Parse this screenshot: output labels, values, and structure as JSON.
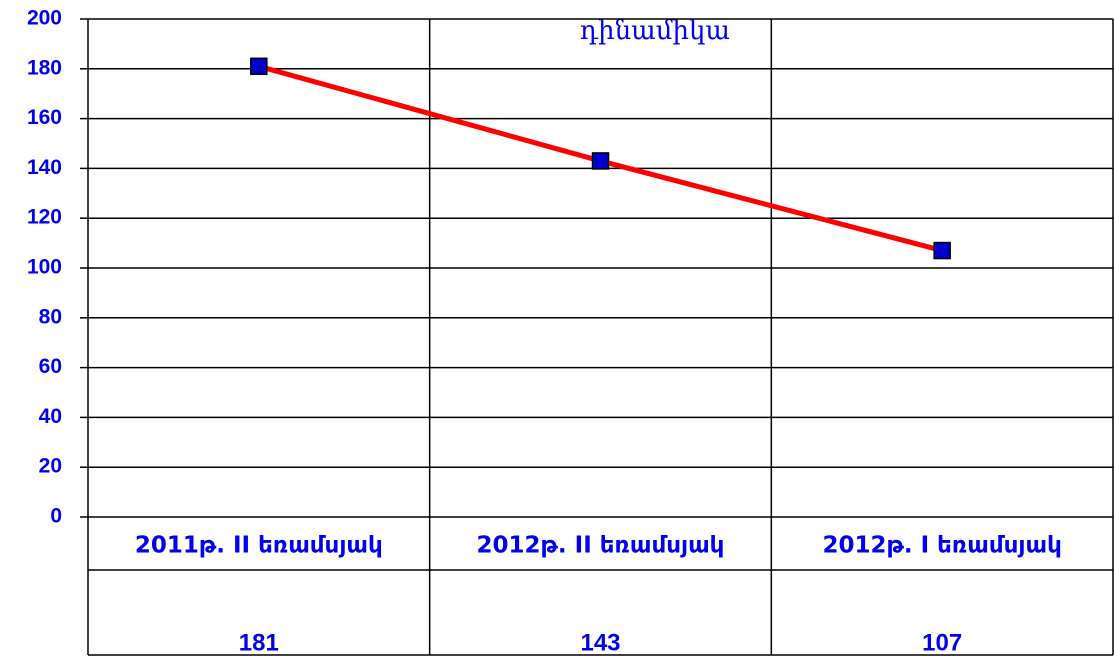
{
  "chart_data": {
    "type": "line",
    "title": "դինամիկա",
    "categories": [
      "2011թ. II եռամսյակ",
      "2012թ. II եռամսյակ",
      "2012թ. I եռամսյակ"
    ],
    "series": [
      {
        "color": "#ff0000",
        "marker_color": "#0000cc",
        "values": [
          181,
          143,
          107
        ]
      }
    ],
    "ylim": [
      0,
      200
    ],
    "yticks": [
      0,
      20,
      40,
      60,
      80,
      100,
      120,
      140,
      160,
      180,
      200
    ],
    "grid": true,
    "data_table": true
  }
}
